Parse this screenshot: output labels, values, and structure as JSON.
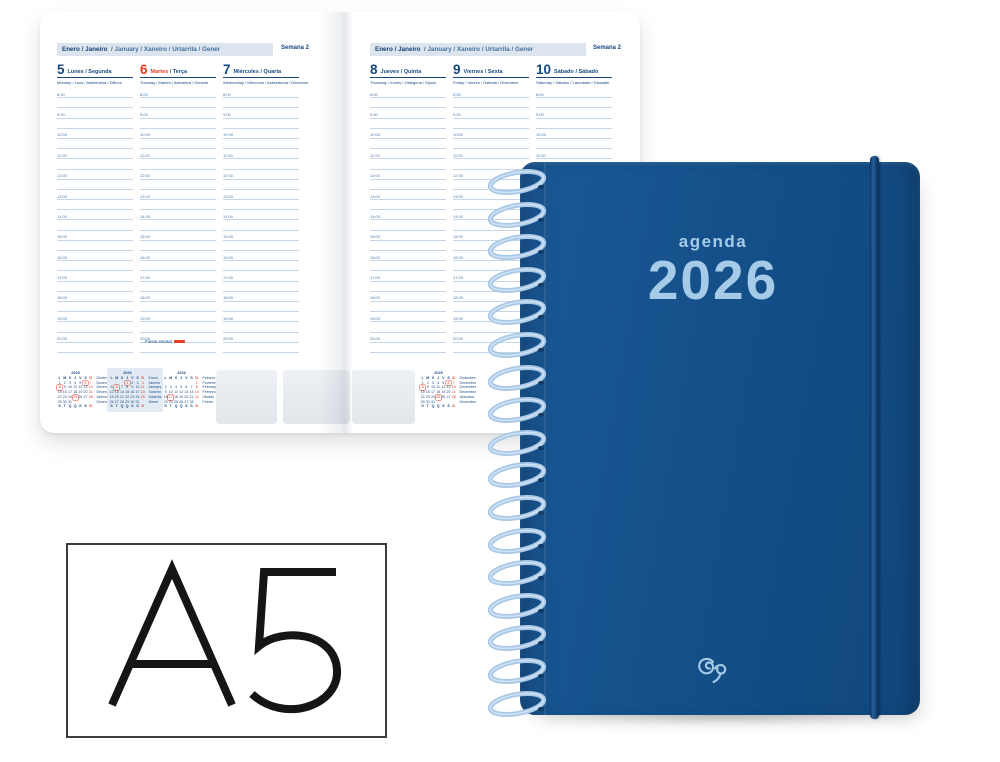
{
  "product": {
    "size_label": "A5",
    "cover": {
      "title": "agenda",
      "year": "2026",
      "color": "#15508a",
      "band_color": "#113e6d",
      "text_color": "#a6cbe8",
      "logo_icon": "liderpapel-script-loop-logo"
    },
    "spiral_color": "#a9c8e6"
  },
  "planner": {
    "header": {
      "primary": "Enero / Janeiro",
      "secondary": "/ January / Xaneiro / Urtarrila / Gener",
      "week": "Semana 2"
    },
    "footer_note": "Fiesta estatal",
    "hours": [
      "8:00",
      "9:00",
      "10:00",
      "11:00",
      "12:00",
      "13:00",
      "14:00",
      "15:00",
      "16:00",
      "17:00",
      "18:00",
      "19:00",
      "20:00"
    ],
    "left_days": [
      {
        "num": "5",
        "name": "Lunes",
        "name2": "Segunda",
        "alt": "Monday / Luns / Astelehena / Dilluns",
        "holiday": false
      },
      {
        "num": "6",
        "name": "Martes",
        "name2": "Terça",
        "alt": "Tuesday / Martes / Asteartea / Dimarts",
        "holiday": true
      },
      {
        "num": "7",
        "name": "Miércoles",
        "name2": "Quarta",
        "alt": "Wednesday / Mércores / Asteazkena / Dimecres",
        "holiday": false
      }
    ],
    "right_days": [
      {
        "num": "8",
        "name": "Jueves",
        "name2": "Quinta",
        "alt": "Thursday / Xoves / Osteguna / Dijous",
        "holiday": false
      },
      {
        "num": "9",
        "name": "Viernes",
        "name2": "Sexta",
        "alt": "Friday / Venres / Ostirala / Divendres",
        "holiday": false
      },
      {
        "num": "10",
        "name": "Sábado",
        "name2": "Sábado",
        "alt": "Saturday / Sábado / Larunbata / Dissabte",
        "holiday": false
      }
    ],
    "mini_calendars": [
      {
        "year": "2025",
        "weekdays_top": [
          "L",
          "M",
          "X",
          "J",
          "V",
          "S",
          "D"
        ],
        "weekdays_bottom": [
          "S",
          "T",
          "Q",
          "Q",
          "S",
          "S",
          "D"
        ],
        "weeks": [
          [
            "1",
            "2",
            "3",
            "4",
            "5",
            "6",
            "7"
          ],
          [
            "8",
            "9",
            "10",
            "11",
            "12",
            "13",
            "14"
          ],
          [
            "15",
            "16",
            "17",
            "18",
            "19",
            "20",
            "21"
          ],
          [
            "22",
            "23",
            "24",
            "25",
            "26",
            "27",
            "28"
          ],
          [
            "29",
            "30",
            "31",
            "",
            "",
            "",
            ""
          ]
        ],
        "boxed": [
          "6",
          "8",
          "25"
        ],
        "months": [
          "Diciembre",
          "Dezembro",
          "December",
          "Decembro",
          "Abendua",
          "Desembre"
        ],
        "highlight": false
      },
      {
        "year": "2026",
        "weekdays_top": [
          "L",
          "M",
          "X",
          "J",
          "V",
          "S",
          "D"
        ],
        "weekdays_bottom": [
          "S",
          "T",
          "Q",
          "Q",
          "S",
          "S",
          "D"
        ],
        "weeks": [
          [
            "",
            "",
            "",
            "1",
            "2",
            "3",
            "4"
          ],
          [
            "5",
            "6",
            "7",
            "8",
            "9",
            "10",
            "11"
          ],
          [
            "12",
            "13",
            "14",
            "15",
            "16",
            "17",
            "18"
          ],
          [
            "19",
            "20",
            "21",
            "22",
            "23",
            "24",
            "25"
          ],
          [
            "26",
            "27",
            "28",
            "29",
            "30",
            "31",
            ""
          ]
        ],
        "boxed": [
          "1",
          "6"
        ],
        "months": [
          "Enero",
          "Janeiro",
          "January",
          "Xaneiro",
          "Urtarrila",
          "Gener"
        ],
        "highlight": true
      },
      {
        "year": "2026",
        "weekdays_top": [
          "L",
          "M",
          "X",
          "J",
          "V",
          "S",
          "D"
        ],
        "weekdays_bottom": [
          "S",
          "T",
          "Q",
          "Q",
          "S",
          "S",
          "D"
        ],
        "weeks": [
          [
            "",
            "",
            "",
            "",
            "",
            "",
            "1"
          ],
          [
            "2",
            "3",
            "4",
            "5",
            "6",
            "7",
            "8"
          ],
          [
            "9",
            "10",
            "11",
            "12",
            "13",
            "14",
            "15"
          ],
          [
            "16",
            "17",
            "18",
            "19",
            "20",
            "21",
            "22"
          ],
          [
            "23",
            "24",
            "25",
            "26",
            "27",
            "28",
            ""
          ]
        ],
        "boxed": [
          "17"
        ],
        "months": [
          "Febrero",
          "Fevereiro",
          "February",
          "Febreiro",
          "Otsaila",
          "Febrer"
        ],
        "highlight": false
      }
    ]
  }
}
